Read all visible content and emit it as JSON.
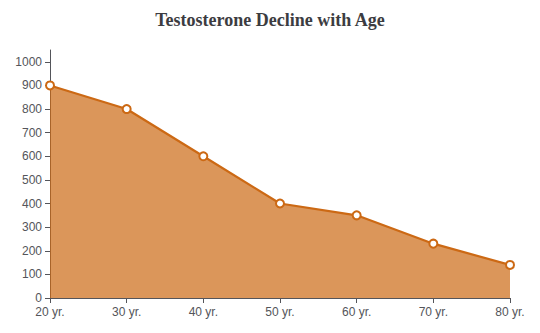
{
  "chart_data": {
    "type": "area",
    "title": "Testosterone Decline with Age",
    "x": [
      20,
      30,
      40,
      50,
      60,
      70,
      80
    ],
    "values": [
      900,
      800,
      600,
      400,
      350,
      230,
      140
    ],
    "xlim": [
      20,
      80
    ],
    "xticks": [
      {
        "value": 20,
        "label": "20 yr."
      },
      {
        "value": 30,
        "label": "30 yr."
      },
      {
        "value": 40,
        "label": "40 yr."
      },
      {
        "value": 50,
        "label": "50 yr."
      },
      {
        "value": 60,
        "label": "60 yr."
      },
      {
        "value": 70,
        "label": "70 yr."
      },
      {
        "value": 80,
        "label": "80 yr."
      }
    ],
    "ylim": [
      0,
      1050
    ],
    "yticks": [
      0,
      100,
      200,
      300,
      400,
      500,
      600,
      700,
      800,
      900,
      1000
    ],
    "color": "#cc6914",
    "marker": "circle",
    "grid": false
  }
}
